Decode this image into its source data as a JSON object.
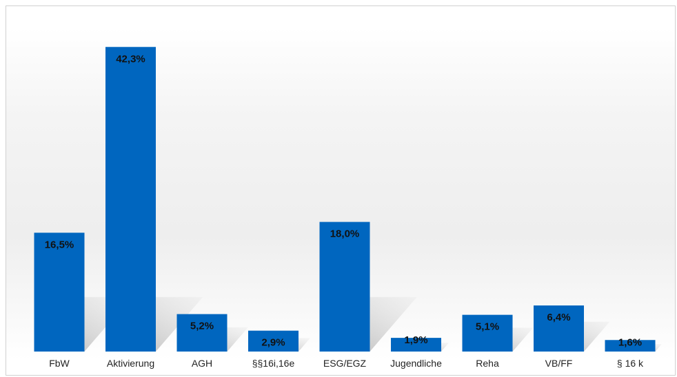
{
  "chart_data": {
    "type": "bar",
    "title": "",
    "xlabel": "",
    "ylabel": "",
    "categories": [
      "FbW",
      "Aktivierung",
      "AGH",
      "§§16i,16e",
      "ESG/EGZ",
      "Jugendliche",
      "Reha",
      "VB/FF",
      "§ 16 k"
    ],
    "values": [
      16.5,
      42.3,
      5.2,
      2.9,
      18.0,
      1.9,
      5.1,
      6.4,
      1.6
    ],
    "value_labels": [
      "16,5%",
      "42,3%",
      "5,2%",
      "2,9%",
      "18,0%",
      "1,9%",
      "5,1%",
      "6,4%",
      "1,6%"
    ],
    "ylim": [
      0,
      45
    ],
    "grid": false,
    "legend": "none",
    "bar_color": "#0066bf",
    "shadow_color": "#bfbfbf"
  }
}
